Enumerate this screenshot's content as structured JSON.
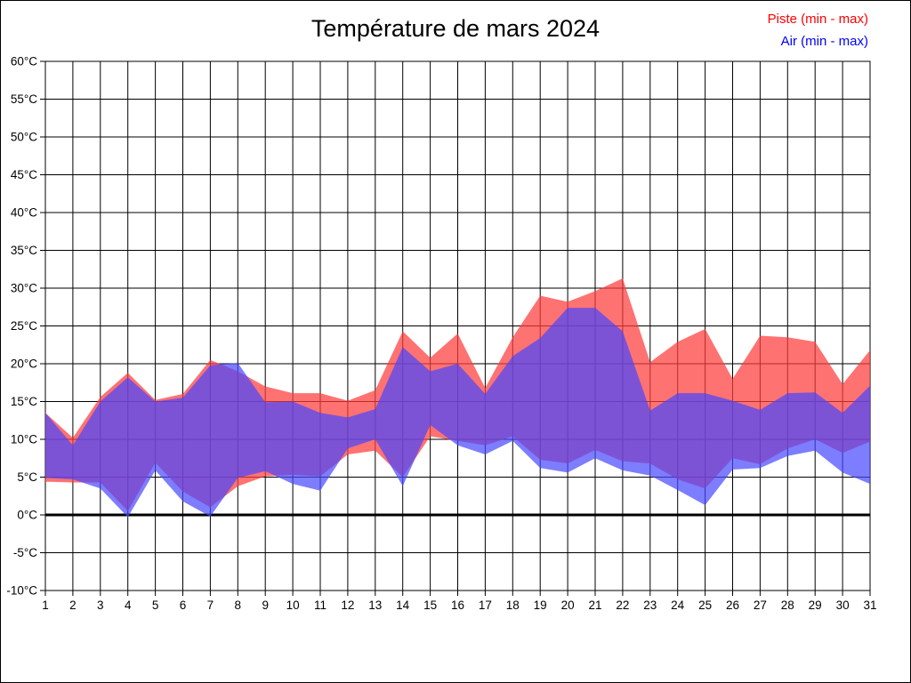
{
  "title": "Température de mars 2024",
  "legend": [
    {
      "label": "Piste (min - max)",
      "color": "#ff0000"
    },
    {
      "label": "Air (min - max)",
      "color": "#0000ff"
    }
  ],
  "chart_data": {
    "type": "area",
    "subtype": "min-max-range-bands",
    "title": "Température de mars 2024",
    "xlabel": "",
    "ylabel": "",
    "y_unit": "°C",
    "ylim": [
      -10,
      60
    ],
    "y_tick_step": 5,
    "grid": true,
    "legend_position": "top-right",
    "zero_line": {
      "value": 0,
      "stroke_width": 3
    },
    "x": [
      1,
      2,
      3,
      4,
      5,
      6,
      7,
      8,
      9,
      10,
      11,
      12,
      13,
      14,
      15,
      16,
      17,
      18,
      19,
      20,
      21,
      22,
      23,
      24,
      25,
      26,
      27,
      28,
      29,
      30,
      31
    ],
    "x_tick_labels": [
      "1",
      "2",
      "3",
      "4",
      "5",
      "6",
      "7",
      "8",
      "9",
      "10",
      "11",
      "12",
      "13",
      "14",
      "15",
      "16",
      "17",
      "18",
      "19",
      "20",
      "21",
      "22",
      "23",
      "24",
      "25",
      "26",
      "27",
      "28",
      "29",
      "30",
      "31"
    ],
    "y_tick_labels": [
      "60°C",
      "55°C",
      "50°C",
      "45°C",
      "40°C",
      "35°C",
      "30°C",
      "25°C",
      "20°C",
      "15°C",
      "10°C",
      "5°C",
      "0°C",
      "-5°C",
      "-10°C"
    ],
    "series": [
      {
        "name": "Piste (min - max)",
        "legend_color": "#ff0000",
        "fill": "rgba(255,60,60,0.72)",
        "min": [
          4.4,
          4.3,
          4.3,
          0.5,
          6.9,
          3.1,
          1.0,
          3.8,
          5.1,
          5.3,
          5.1,
          8.0,
          8.5,
          5.0,
          10.4,
          9.8,
          9.2,
          10.4,
          7.3,
          6.8,
          8.6,
          7.1,
          6.8,
          4.7,
          3.5,
          7.5,
          6.7,
          8.8,
          10.0,
          8.2,
          9.7
        ],
        "max": [
          13.5,
          10.2,
          15.6,
          18.8,
          15.2,
          16.0,
          20.5,
          19.0,
          17.0,
          16.1,
          16.1,
          15.1,
          16.5,
          24.3,
          20.8,
          24.0,
          16.8,
          23.5,
          29.0,
          28.2,
          29.6,
          31.3,
          20.2,
          22.9,
          24.6,
          18.0,
          23.7,
          23.5,
          22.9,
          17.3,
          21.8
        ]
      },
      {
        "name": "Air (min - max)",
        "legend_color": "#0000ff",
        "fill": "rgba(70,70,255,0.70)",
        "min": [
          4.9,
          4.7,
          3.5,
          -0.3,
          5.9,
          1.8,
          -0.2,
          4.9,
          5.8,
          4.1,
          3.2,
          8.8,
          10.0,
          3.8,
          11.9,
          9.2,
          8.0,
          9.8,
          6.2,
          5.6,
          7.5,
          5.9,
          5.2,
          3.3,
          1.3,
          6.0,
          6.2,
          7.8,
          8.5,
          5.6,
          4.1
        ],
        "max": [
          13.5,
          9.2,
          15.0,
          18.2,
          15.0,
          15.5,
          19.8,
          20.1,
          14.9,
          15.0,
          13.5,
          12.9,
          14.0,
          22.2,
          19.0,
          20.0,
          16.0,
          21.0,
          23.4,
          27.4,
          27.4,
          24.3,
          13.8,
          16.1,
          16.1,
          15.1,
          13.9,
          16.1,
          16.2,
          13.5,
          17.1
        ]
      }
    ]
  }
}
